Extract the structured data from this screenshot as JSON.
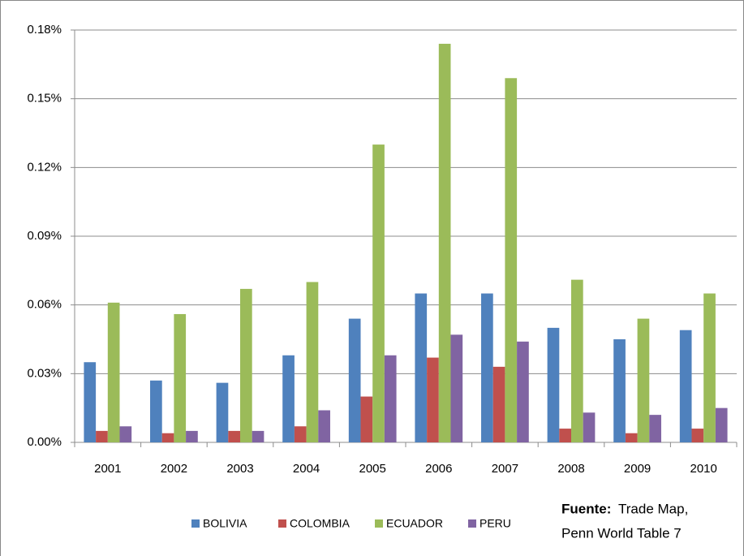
{
  "chart_data": {
    "type": "bar",
    "categories": [
      "2001",
      "2002",
      "2003",
      "2004",
      "2005",
      "2006",
      "2007",
      "2008",
      "2009",
      "2010"
    ],
    "series": [
      {
        "name": "BOLIVIA",
        "color": "#4f81bd",
        "values": [
          0.035,
          0.027,
          0.026,
          0.038,
          0.054,
          0.065,
          0.065,
          0.05,
          0.045,
          0.049
        ]
      },
      {
        "name": "COLOMBIA",
        "color": "#c0504d",
        "values": [
          0.005,
          0.004,
          0.005,
          0.007,
          0.02,
          0.037,
          0.033,
          0.006,
          0.004,
          0.006
        ]
      },
      {
        "name": "ECUADOR",
        "color": "#9bbb59",
        "values": [
          0.061,
          0.056,
          0.067,
          0.07,
          0.13,
          0.174,
          0.159,
          0.071,
          0.054,
          0.065
        ]
      },
      {
        "name": "PERU",
        "color": "#8064a2",
        "values": [
          0.007,
          0.005,
          0.005,
          0.014,
          0.038,
          0.047,
          0.044,
          0.013,
          0.012,
          0.015
        ]
      }
    ],
    "ylim": [
      0,
      0.18
    ],
    "yticks": [
      {
        "value": 0,
        "label": "0.00%"
      },
      {
        "value": 0.03,
        "label": "0.03%"
      },
      {
        "value": 0.06,
        "label": "0.06%"
      },
      {
        "value": 0.09,
        "label": "0.09%"
      },
      {
        "value": 0.12,
        "label": "0.12%"
      },
      {
        "value": 0.15,
        "label": "0.15%"
      },
      {
        "value": 0.18,
        "label": "0.18%"
      }
    ],
    "grid": true,
    "legend": "bottom",
    "source": {
      "label": "Fuente:",
      "lines": [
        "Trade Map,",
        "Penn World Table 7"
      ]
    }
  }
}
